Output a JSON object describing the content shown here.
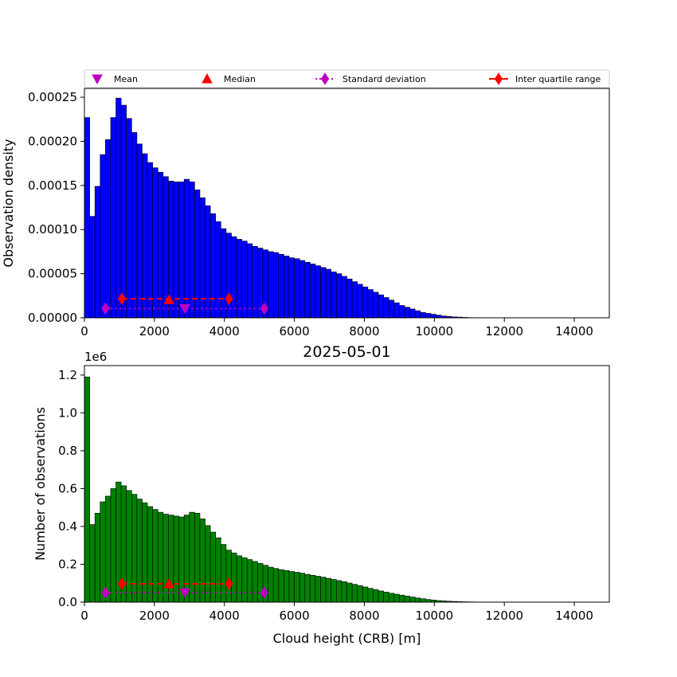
{
  "colors": {
    "top_bars": "#0000ff",
    "bottom_bars": "#008000",
    "bar_edge": "#000000",
    "mean": "#bf00bf",
    "median": "#ff0000",
    "std": "#bf00bf",
    "iqr": "#ff0000"
  },
  "chart_data": [
    {
      "type": "bar",
      "xlabel": "",
      "ylabel": "Observation density",
      "xlim": [
        0,
        15000
      ],
      "ylim": [
        0,
        0.00026
      ],
      "xticks": [
        "0",
        "2000",
        "4000",
        "6000",
        "8000",
        "10000",
        "12000",
        "14000"
      ],
      "yticks": [
        "0.00000",
        "0.00005",
        "0.00010",
        "0.00015",
        "0.00020",
        "0.00025"
      ],
      "legend": {
        "placement": "above",
        "entries": [
          "Mean",
          "Median",
          "Standard deviation",
          "Inter quartile range"
        ]
      },
      "bin_width": 150,
      "values": [
        0.000227,
        0.000115,
        0.000149,
        0.000185,
        0.000202,
        0.000227,
        0.000249,
        0.000241,
        0.000226,
        0.00021,
        0.000197,
        0.000186,
        0.000176,
        0.00017,
        0.000165,
        0.00016,
        0.000155,
        0.000154,
        0.000154,
        0.000157,
        0.000154,
        0.000145,
        0.000136,
        0.000127,
        0.000118,
        0.000109,
        0.000101,
        9.6e-05,
        9.2e-05,
        8.9e-05,
        8.7e-05,
        8.4e-05,
        8.1e-05,
        7.9e-05,
        7.7e-05,
        7.5e-05,
        7.4e-05,
        7.2e-05,
        7e-05,
        6.8e-05,
        6.7e-05,
        6.5e-05,
        6.3e-05,
        6.1e-05,
        5.9e-05,
        5.7e-05,
        5.5e-05,
        5.2e-05,
        5e-05,
        4.7e-05,
        4.4e-05,
        4.1e-05,
        3.8e-05,
        3.5e-05,
        3.2e-05,
        2.9e-05,
        2.6e-05,
        2.3e-05,
        2e-05,
        1.7e-05,
        1.4e-05,
        1.2e-05,
        1e-05,
        8e-06,
        6e-06,
        5e-06,
        4e-06,
        3e-06,
        2e-06,
        1.5e-06,
        1e-06,
        8e-07,
        5e-07,
        3e-07,
        2e-07,
        1e-07
      ],
      "stats": {
        "mean": {
          "x": 2870,
          "y": 1.05e-05
        },
        "median": {
          "x": 2420,
          "y": 2.05e-05
        },
        "std": {
          "x": [
            600,
            5140
          ],
          "y": 1.05e-05
        },
        "iqr": {
          "x": [
            1070,
            4130
          ],
          "y": 2.15e-05
        }
      }
    },
    {
      "type": "bar",
      "title": "2025-05-01",
      "xlabel": "Cloud height (CRB) [m]",
      "ylabel": "Number of observations",
      "offset_label": "1e6",
      "xlim": [
        0,
        15000
      ],
      "ylim": [
        0,
        1250000
      ],
      "xticks": [
        "0",
        "2000",
        "4000",
        "6000",
        "8000",
        "10000",
        "12000",
        "14000"
      ],
      "yticks": [
        "0.0",
        "0.2",
        "0.4",
        "0.6",
        "0.8",
        "1.0",
        "1.2"
      ],
      "bin_width": 150,
      "values": [
        1190000,
        410000,
        470000,
        530000,
        560000,
        600000,
        635000,
        615000,
        590000,
        570000,
        545000,
        525000,
        505000,
        490000,
        475000,
        465000,
        460000,
        455000,
        450000,
        460000,
        475000,
        470000,
        440000,
        405000,
        370000,
        340000,
        305000,
        275000,
        260000,
        245000,
        235000,
        225000,
        215000,
        205000,
        195000,
        185000,
        178000,
        172000,
        167000,
        162000,
        158000,
        153000,
        147000,
        142000,
        137000,
        132000,
        126000,
        120000,
        114000,
        108000,
        101000,
        94000,
        87000,
        80000,
        73000,
        66000,
        59000,
        53000,
        47000,
        42000,
        37000,
        32000,
        27000,
        22000,
        18000,
        14000,
        11000,
        8500,
        6500,
        5000,
        3800,
        2800,
        2000,
        1400,
        900,
        500
      ],
      "stats": {
        "mean": {
          "x": 2870,
          "y": 50000
        },
        "median": {
          "x": 2420,
          "y": 97000
        },
        "std": {
          "x": [
            600,
            5140
          ],
          "y": 50000
        },
        "iqr": {
          "x": [
            1070,
            4130
          ],
          "y": 97000
        }
      }
    }
  ]
}
